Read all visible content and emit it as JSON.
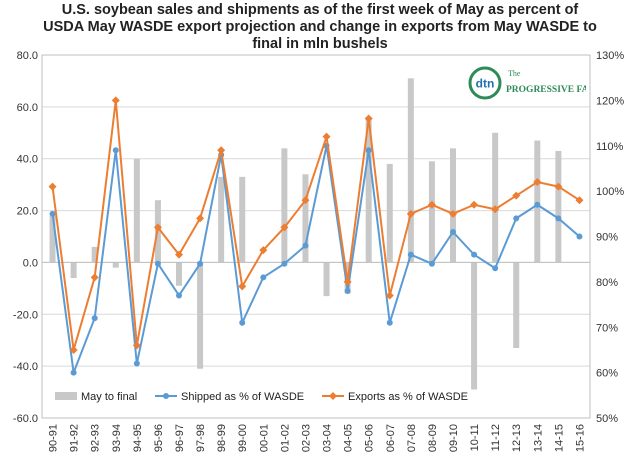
{
  "chart_data": {
    "type": "bar+line",
    "title_lines": [
      "U.S. soybean sales and shipments as of the first week of May as percent of",
      "USDA May WASDE  export projection and change in exports from May WASDE to",
      "final in mln bushels"
    ],
    "categories": [
      "90-91",
      "91-92",
      "92-93",
      "93-94",
      "94-95",
      "95-96",
      "96-97",
      "97-98",
      "98-99",
      "99-00",
      "00-01",
      "01-02",
      "02-03",
      "03-04",
      "04-05",
      "05-06",
      "06-07",
      "07-08",
      "08-09",
      "09-10",
      "10-11",
      "11-12",
      "12-13",
      "13-14",
      "14-15",
      "15-16"
    ],
    "left_axis": {
      "min": -60,
      "max": 80,
      "step": 20,
      "ticks": [
        "-60.0",
        "-40.0",
        "-20.0",
        "0.0",
        "20.0",
        "40.0",
        "60.0",
        "80.0"
      ]
    },
    "right_axis": {
      "min": 50,
      "max": 130,
      "step": 10,
      "ticks": [
        "50%",
        "60%",
        "70%",
        "80%",
        "90%",
        "100%",
        "110%",
        "120%",
        "130%"
      ]
    },
    "series": [
      {
        "name": "May to final",
        "kind": "bar",
        "axis": "left",
        "color": "#c8c8c8",
        "values": [
          18,
          -6,
          6,
          -2,
          40,
          24,
          -9,
          -41,
          33,
          33,
          0,
          44,
          34,
          -13,
          -12,
          56,
          38,
          71,
          39,
          44,
          -49,
          50,
          -33,
          47,
          43,
          0
        ]
      },
      {
        "name": "Shipped as % of WASDE",
        "kind": "line",
        "axis": "right",
        "color": "#5b9bd5",
        "values": [
          95,
          60,
          72,
          109,
          62,
          84,
          77,
          84,
          108,
          71,
          81,
          84,
          88,
          110,
          78,
          109,
          71,
          86,
          84,
          91,
          86,
          83,
          94,
          97,
          94,
          90
        ]
      },
      {
        "name": "Exports as % of WASDE",
        "kind": "line",
        "axis": "right",
        "color": "#ed7d31",
        "values": [
          101,
          65,
          81,
          120,
          66,
          92,
          86,
          94,
          109,
          79,
          87,
          92,
          98,
          112,
          80,
          116,
          77,
          95,
          97,
          95,
          97,
          96,
          99,
          102,
          101,
          98
        ]
      }
    ],
    "legend_position": "bottom-left",
    "grid": "horizontal"
  },
  "logo": {
    "mark": "dtn",
    "name": "PROGRESSIVE FARMER",
    "prefix": "The"
  },
  "colors": {
    "bar": "#c8c8c8",
    "shipped": "#5b9bd5",
    "exports": "#ed7d31",
    "grid": "#d9d9d9"
  }
}
